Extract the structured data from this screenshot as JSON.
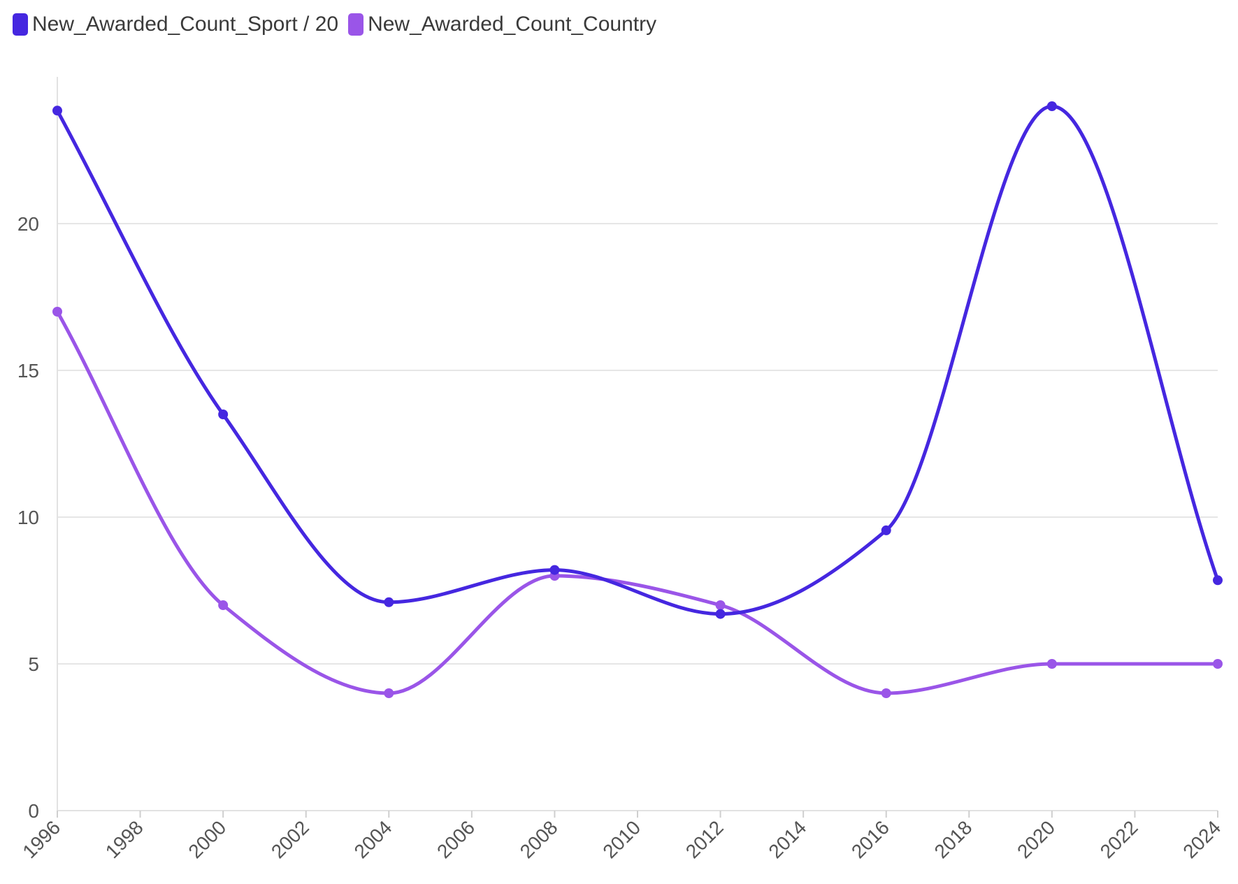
{
  "chart_data": {
    "type": "line",
    "title": "",
    "xlabel": "",
    "ylabel": "",
    "x_ticks": [
      "1996",
      "1998",
      "2000",
      "2002",
      "2004",
      "2006",
      "2008",
      "2010",
      "2012",
      "2014",
      "2016",
      "2018",
      "2020",
      "2022",
      "2024"
    ],
    "y_ticks": [
      "0",
      "5",
      "10",
      "15",
      "20"
    ],
    "xlim": [
      1996,
      2024
    ],
    "ylim": [
      0,
      25
    ],
    "grid": "horizontal",
    "legend_position": "top-left",
    "smooth": true,
    "series": [
      {
        "name": "New_Awarded_Count_Sport / 20",
        "color": "#4527e0",
        "x": [
          1996,
          2000,
          2004,
          2008,
          2012,
          2016,
          2020,
          2024
        ],
        "y": [
          23.85,
          13.5,
          7.1,
          8.2,
          6.7,
          9.55,
          24.0,
          7.85
        ]
      },
      {
        "name": "New_Awarded_Count_Country",
        "color": "#9a55e8",
        "x": [
          1996,
          2000,
          2004,
          2008,
          2012,
          2016,
          2020,
          2024
        ],
        "y": [
          17,
          7,
          4,
          8,
          7,
          4,
          5,
          5
        ]
      }
    ]
  }
}
